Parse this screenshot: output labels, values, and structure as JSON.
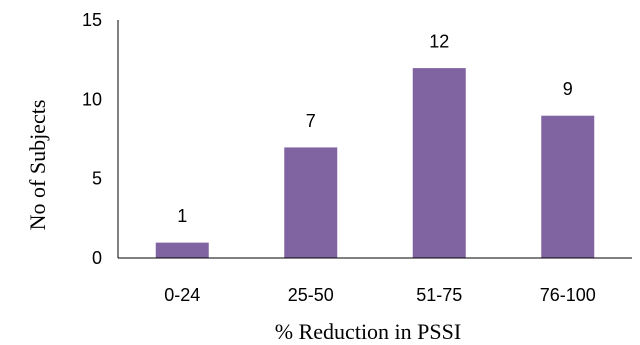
{
  "chart_data": {
    "type": "bar",
    "title": "",
    "xlabel": "% Reduction in PSSI",
    "ylabel": "No of Subjects",
    "categories": [
      "0-24",
      "25-50",
      "51-75",
      "76-100"
    ],
    "values": [
      1,
      7,
      12,
      9
    ],
    "data_labels": [
      "1",
      "7",
      "12",
      "9"
    ],
    "ylim": [
      0,
      15
    ],
    "yticks": [
      "0",
      "5",
      "10",
      "15"
    ],
    "grid": false,
    "legend": "none",
    "colors": {
      "bar": "#8064A2"
    }
  }
}
